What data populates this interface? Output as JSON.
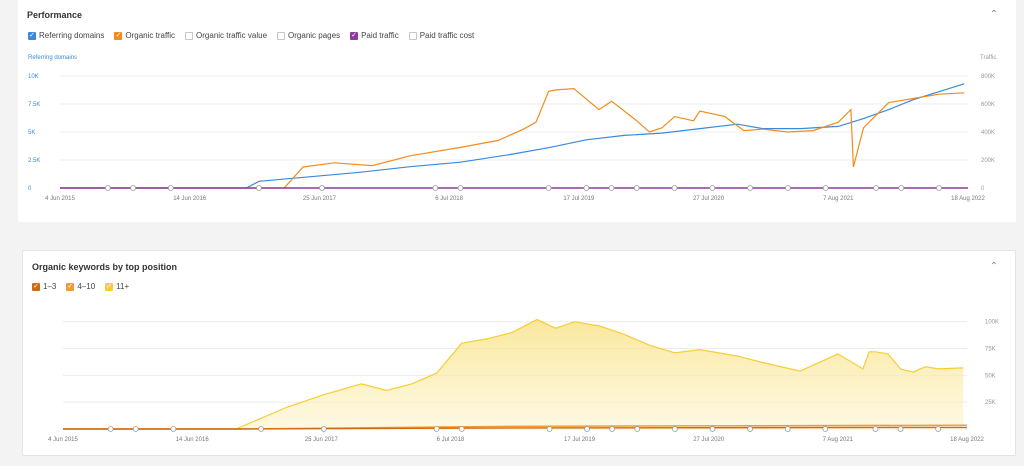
{
  "perf": {
    "title": "Performance",
    "legend": [
      {
        "label": "Referring domains",
        "checked": true,
        "color": "#3b8ad9"
      },
      {
        "label": "Organic traffic",
        "checked": true,
        "color": "#f28c1c"
      },
      {
        "label": "Organic traffic value",
        "checked": false,
        "color": "#c6c6c6"
      },
      {
        "label": "Organic pages",
        "checked": false,
        "color": "#c6c6c6"
      },
      {
        "label": "Paid traffic",
        "checked": true,
        "color": "#8e3a9e"
      },
      {
        "label": "Paid traffic cost",
        "checked": false,
        "color": "#c6c6c6"
      }
    ]
  },
  "kw": {
    "title": "Organic keywords by top position",
    "legend": [
      {
        "label": "1–3",
        "checked": true,
        "color": "#d26a12"
      },
      {
        "label": "4–10",
        "checked": true,
        "color": "#f29b30"
      },
      {
        "label": "11+",
        "checked": true,
        "color": "#f5ce36"
      }
    ]
  },
  "chart_data": [
    {
      "type": "line",
      "title": "Performance",
      "left_axis_label": "Referring domains",
      "right_axis_label": "Traffic",
      "x_ticks": [
        "4 Jun 2015",
        "14 Jun 2016",
        "25 Jun 2017",
        "6 Jul 2018",
        "17 Jul 2019",
        "27 Jul 2020",
        "7 Aug 2021",
        "18 Aug 2022"
      ],
      "left_ticks": [
        "0",
        "2.5K",
        "5K",
        "7.5K",
        "10K"
      ],
      "right_ticks": [
        "0",
        "200K",
        "400K",
        "600K",
        "800K"
      ],
      "left_ylim": [
        0,
        10000
      ],
      "right_ylim": [
        0,
        800000
      ],
      "xlim": [
        2015.42,
        2022.63
      ],
      "series": [
        {
          "name": "Referring domains",
          "axis": "left",
          "color": "#3b8ad9",
          "x": [
            2015.42,
            2016.9,
            2017.0,
            2017.4,
            2017.8,
            2018.2,
            2018.6,
            2019.0,
            2019.3,
            2019.6,
            2019.9,
            2020.2,
            2020.5,
            2020.8,
            2021.0,
            2021.3,
            2021.6,
            2021.8,
            2022.0,
            2022.2,
            2022.4,
            2022.6
          ],
          "y": [
            0,
            0,
            600,
            1000,
            1400,
            1900,
            2300,
            3000,
            3600,
            4300,
            4700,
            4900,
            5300,
            5700,
            5300,
            5300,
            5500,
            6200,
            7000,
            7900,
            8600,
            9300
          ]
        },
        {
          "name": "Organic traffic",
          "axis": "right",
          "color": "#f28c1c",
          "x": [
            2015.42,
            2017.2,
            2017.35,
            2017.6,
            2017.9,
            2018.2,
            2018.6,
            2018.9,
            2019.1,
            2019.2,
            2019.3,
            2019.35,
            2019.5,
            2019.7,
            2019.8,
            2020.0,
            2020.1,
            2020.2,
            2020.3,
            2020.45,
            2020.5,
            2020.7,
            2020.85,
            2021.0,
            2021.2,
            2021.4,
            2021.6,
            2021.7,
            2021.72,
            2021.8,
            2021.9,
            2022.0,
            2022.2,
            2022.4,
            2022.6
          ],
          "y": [
            0,
            0,
            150000,
            180000,
            160000,
            230000,
            290000,
            340000,
            420000,
            470000,
            690000,
            700000,
            710000,
            560000,
            620000,
            480000,
            400000,
            430000,
            510000,
            480000,
            550000,
            510000,
            410000,
            420000,
            400000,
            410000,
            470000,
            560000,
            150000,
            430000,
            520000,
            610000,
            640000,
            670000,
            680000
          ]
        },
        {
          "name": "Paid traffic",
          "axis": "right",
          "color": "#8e3a9e",
          "x": [
            2015.42,
            2022.63
          ],
          "y": [
            0,
            0
          ]
        }
      ]
    },
    {
      "type": "area",
      "title": "Organic keywords by top position",
      "x_ticks": [
        "4 Jun 2015",
        "14 Jun 2016",
        "25 Jun 2017",
        "6 Jul 2018",
        "17 Jul 2019",
        "27 Jul 2020",
        "7 Aug 2021",
        "18 Aug 2022"
      ],
      "y_ticks": [
        "25K",
        "50K",
        "75K",
        "100K"
      ],
      "ylim": [
        0,
        110000
      ],
      "xlim": [
        2015.42,
        2022.63
      ],
      "series": [
        {
          "name": "11+",
          "color": "#f5ce36",
          "x": [
            2015.42,
            2016.8,
            2017.0,
            2017.2,
            2017.5,
            2017.8,
            2018.0,
            2018.2,
            2018.4,
            2018.6,
            2018.8,
            2019.0,
            2019.2,
            2019.35,
            2019.5,
            2019.7,
            2019.9,
            2020.1,
            2020.3,
            2020.5,
            2020.8,
            2021.0,
            2021.3,
            2021.6,
            2021.8,
            2021.85,
            2021.9,
            2022.0,
            2022.1,
            2022.2,
            2022.3,
            2022.4,
            2022.6
          ],
          "y": [
            0,
            0,
            10000,
            20000,
            32000,
            42000,
            36000,
            42000,
            52000,
            80000,
            84000,
            90000,
            102000,
            94000,
            100000,
            96000,
            88000,
            78000,
            71000,
            74000,
            68000,
            62000,
            54000,
            70000,
            56000,
            72000,
            72000,
            70000,
            56000,
            53000,
            58000,
            56000,
            57000
          ]
        },
        {
          "name": "4–10",
          "color": "#f29b30",
          "x": [
            2015.42,
            2016.8,
            2019.0,
            2022.63
          ],
          "y": [
            0,
            0,
            2500,
            3500
          ]
        },
        {
          "name": "1–3",
          "color": "#d26a12",
          "x": [
            2015.42,
            2016.8,
            2019.0,
            2022.63
          ],
          "y": [
            0,
            0,
            1000,
            1500
          ]
        }
      ]
    }
  ]
}
